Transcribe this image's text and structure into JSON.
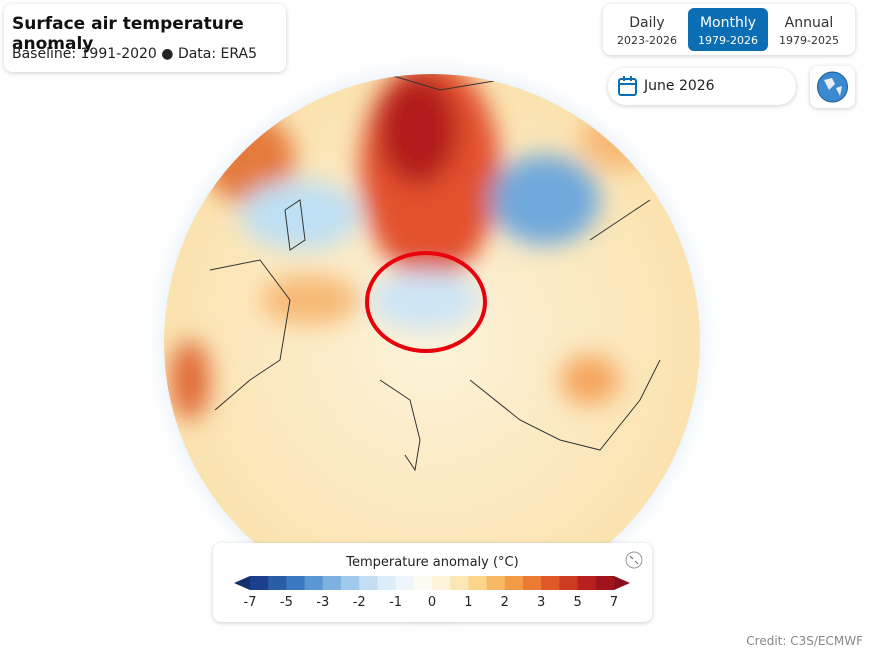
{
  "header": {
    "title": "Surface air temperature anomaly",
    "subtitle": "Baseline: 1991-2020 ● Data: ERA5"
  },
  "tabs": [
    {
      "label": "Daily",
      "range": "2023-2026"
    },
    {
      "label": "Monthly",
      "range": "1979-2026"
    },
    {
      "label": "Annual",
      "range": "1979-2025"
    }
  ],
  "date_picker": {
    "label": "June 2026"
  },
  "legend": {
    "title": "Temperature anomaly (°C)",
    "ticks": [
      -7,
      -5,
      -3,
      -2,
      -1,
      0,
      1,
      2,
      3,
      5,
      7
    ]
  },
  "credit": "Credit: C3S/ECMWF"
}
